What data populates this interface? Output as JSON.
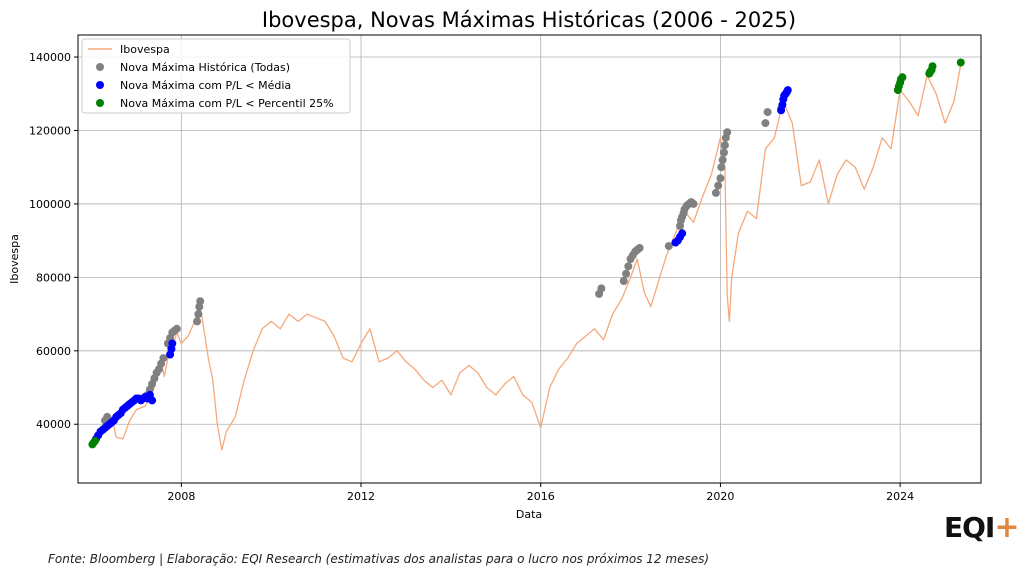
{
  "chart_data": {
    "type": "line",
    "title": "Ibovespa, Novas Máximas Históricas (2006 - 2025)",
    "xlabel": "Data",
    "ylabel": "Ibovespa",
    "xlim": [
      2005.7,
      2025.8
    ],
    "ylim": [
      24000,
      146000
    ],
    "xticks": [
      2008,
      2012,
      2016,
      2020,
      2024
    ],
    "xtick_labels": [
      "2008",
      "2012",
      "2016",
      "2020",
      "2024"
    ],
    "yticks": [
      40000,
      60000,
      80000,
      100000,
      120000,
      140000
    ],
    "ytick_labels": [
      "40000",
      "60000",
      "80000",
      "100000",
      "120000",
      "140000"
    ],
    "grid": true,
    "legend_position": "top-left",
    "series": [
      {
        "name": "Ibovespa",
        "kind": "line",
        "color": "#f4a97c",
        "x": [
          2006.0,
          2006.2,
          2006.35,
          2006.45,
          2006.55,
          2006.7,
          2006.85,
          2007.0,
          2007.2,
          2007.4,
          2007.55,
          2007.62,
          2007.7,
          2007.85,
          2007.9,
          2008.0,
          2008.15,
          2008.3,
          2008.4,
          2008.5,
          2008.6,
          2008.7,
          2008.8,
          2008.9,
          2009.0,
          2009.2,
          2009.4,
          2009.6,
          2009.8,
          2010.0,
          2010.2,
          2010.4,
          2010.6,
          2010.8,
          2011.0,
          2011.2,
          2011.4,
          2011.6,
          2011.8,
          2012.0,
          2012.2,
          2012.4,
          2012.6,
          2012.8,
          2013.0,
          2013.2,
          2013.4,
          2013.6,
          2013.8,
          2014.0,
          2014.2,
          2014.4,
          2014.6,
          2014.8,
          2015.0,
          2015.2,
          2015.4,
          2015.6,
          2015.8,
          2016.0,
          2016.2,
          2016.4,
          2016.6,
          2016.8,
          2017.0,
          2017.2,
          2017.4,
          2017.6,
          2017.8,
          2018.0,
          2018.15,
          2018.3,
          2018.45,
          2018.6,
          2018.8,
          2019.0,
          2019.2,
          2019.4,
          2019.6,
          2019.8,
          2020.0,
          2020.1,
          2020.15,
          2020.2,
          2020.25,
          2020.4,
          2020.6,
          2020.8,
          2021.0,
          2021.2,
          2021.4,
          2021.6,
          2021.8,
          2022.0,
          2022.2,
          2022.4,
          2022.6,
          2022.8,
          2023.0,
          2023.2,
          2023.4,
          2023.6,
          2023.8,
          2024.0,
          2024.2,
          2024.4,
          2024.6,
          2024.8,
          2025.0,
          2025.2,
          2025.35
        ],
        "values": [
          35000,
          39000,
          40500,
          42000,
          36500,
          36000,
          41000,
          44000,
          45000,
          50000,
          57000,
          53000,
          58000,
          63000,
          65000,
          62000,
          64000,
          68000,
          73500,
          66000,
          58000,
          52000,
          40000,
          33000,
          38000,
          42000,
          52000,
          60000,
          66000,
          68000,
          66000,
          70000,
          68000,
          70000,
          69000,
          68000,
          64000,
          58000,
          57000,
          62000,
          66000,
          57000,
          58000,
          60000,
          57000,
          55000,
          52000,
          50000,
          52000,
          48000,
          54000,
          56000,
          54000,
          50000,
          48000,
          51000,
          53000,
          48000,
          46000,
          39000,
          50000,
          55000,
          58000,
          62000,
          64000,
          66000,
          63000,
          70000,
          74000,
          80000,
          85000,
          76000,
          72000,
          78000,
          86000,
          92000,
          98000,
          95000,
          102000,
          108000,
          118000,
          110000,
          75000,
          68000,
          80000,
          92000,
          98000,
          96000,
          115000,
          118000,
          128000,
          122000,
          105000,
          106000,
          112000,
          100000,
          108000,
          112000,
          110000,
          104000,
          110000,
          118000,
          115000,
          131000,
          128000,
          124000,
          135000,
          130000,
          122000,
          128000,
          138000
        ]
      },
      {
        "name": "Nova Máxima Histórica (Todas)",
        "kind": "scatter",
        "color": "#808080",
        "x": [
          2006.3,
          2006.35,
          2007.25,
          2007.3,
          2007.35,
          2007.4,
          2007.45,
          2007.5,
          2007.55,
          2007.6,
          2007.7,
          2007.75,
          2007.8,
          2007.85,
          2007.9,
          2008.35,
          2008.38,
          2008.4,
          2008.42,
          2017.3,
          2017.35,
          2017.85,
          2017.9,
          2017.95,
          2018.0,
          2018.05,
          2018.1,
          2018.15,
          2018.2,
          2018.85,
          2019.1,
          2019.12,
          2019.15,
          2019.18,
          2019.2,
          2019.25,
          2019.3,
          2019.35,
          2019.4,
          2019.9,
          2019.95,
          2020.0,
          2020.02,
          2020.05,
          2020.08,
          2020.1,
          2020.12,
          2020.15,
          2021.0,
          2021.05,
          2021.35
        ],
        "values": [
          41000,
          42000,
          48000,
          49500,
          51000,
          52500,
          54000,
          55000,
          56500,
          58000,
          62000,
          63500,
          65000,
          65500,
          66000,
          68000,
          70000,
          72000,
          73500,
          75500,
          77000,
          79000,
          81000,
          83000,
          85000,
          86000,
          87000,
          87500,
          88000,
          88500,
          94000,
          95500,
          96500,
          97500,
          98500,
          99500,
          100000,
          100500,
          100000,
          103000,
          105000,
          107000,
          110000,
          112000,
          114000,
          116000,
          118000,
          119500,
          122000,
          125000,
          126000
        ]
      },
      {
        "name": "Nova Máxima com P/L < Média",
        "kind": "scatter",
        "color": "#0000ff",
        "x": [
          2006.1,
          2006.15,
          2006.2,
          2006.25,
          2006.3,
          2006.35,
          2006.4,
          2006.45,
          2006.5,
          2006.55,
          2006.6,
          2006.65,
          2006.7,
          2006.75,
          2006.8,
          2006.85,
          2006.9,
          2006.95,
          2007.0,
          2007.05,
          2007.1,
          2007.15,
          2007.2,
          2007.25,
          2007.3,
          2007.35,
          2007.75,
          2007.78,
          2007.8,
          2019.0,
          2019.05,
          2019.1,
          2019.15,
          2021.35,
          2021.38,
          2021.4,
          2021.42,
          2021.45,
          2021.48,
          2021.5
        ],
        "values": [
          36000,
          37000,
          38000,
          38500,
          39000,
          39500,
          40000,
          40500,
          41000,
          42000,
          42500,
          43000,
          44000,
          44500,
          45000,
          45500,
          46000,
          46500,
          47000,
          47000,
          46500,
          47000,
          47500,
          47000,
          48000,
          46500,
          59000,
          60500,
          62000,
          89500,
          90000,
          91000,
          92000,
          125500,
          127000,
          128500,
          129500,
          130000,
          130500,
          131000
        ]
      },
      {
        "name": "Nova Máxima com P/L < Percentil 25%",
        "kind": "scatter",
        "color": "#008000",
        "x": [
          2006.02,
          2006.05,
          2006.08,
          2023.95,
          2023.97,
          2024.0,
          2024.02,
          2024.05,
          2024.65,
          2024.67,
          2024.7,
          2024.72,
          2025.35
        ],
        "values": [
          34500,
          35000,
          35500,
          131000,
          132000,
          133000,
          134000,
          134500,
          135500,
          136000,
          136500,
          137500,
          138500
        ]
      }
    ]
  },
  "footer": {
    "source": "Fonte: Bloomberg | Elaboração: EQI Research (estimativas dos analistas para o lucro nos próximos 12 meses)"
  },
  "logo": {
    "text": "EQI",
    "plus": "+"
  }
}
